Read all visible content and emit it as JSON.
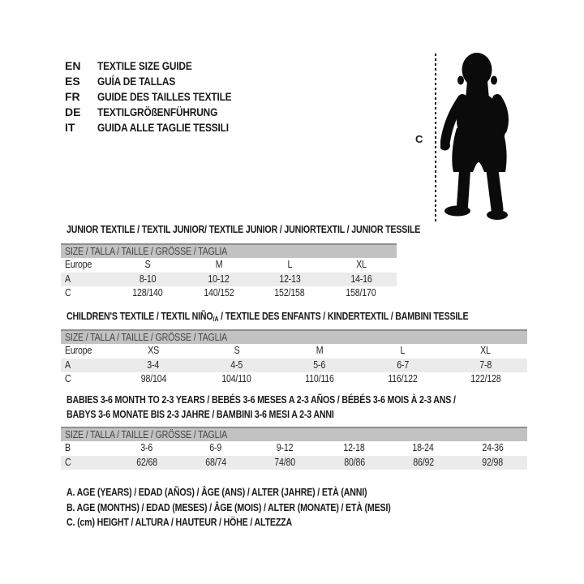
{
  "page": {
    "title": "Textile Size Guide"
  },
  "languages": [
    {
      "code": "EN",
      "label": "TEXTILE SIZE GUIDE"
    },
    {
      "code": "ES",
      "label": "GUÍA DE TALLAS"
    },
    {
      "code": "FR",
      "label": "GUIDE DES TAILLES TEXTILE"
    },
    {
      "code": "DE",
      "label": "TEXTILGRÖßENFÜHRUNG"
    },
    {
      "code": "IT",
      "label": "GUIDA ALLE TAGLIE TESSILI"
    }
  ],
  "figure": {
    "measure_label": "C"
  },
  "tables": {
    "junior": {
      "heading": "JUNIOR TEXTILE / TEXTIL JUNIOR/ TEXTILE JUNIOR / JUNIORTEXTIL / JUNIOR TESSILE",
      "size_header": "SIZE / TALLA / TAILLE / GRÖSSE / TAGLIA",
      "rows": [
        [
          "Europe",
          "S",
          "M",
          "L",
          "XL"
        ],
        [
          "A",
          "8-10",
          "10-12",
          "12-13",
          "14-16"
        ],
        [
          "C",
          "128/140",
          "140/152",
          "152/158",
          "158/170"
        ]
      ]
    },
    "children": {
      "heading_prefix": "CHILDREN'S TEXTILE / TEXTIL NIÑO",
      "heading_sub": "/A",
      "heading_suffix": " / TEXTILE DES ENFANTS / KINDERTEXTIL / BAMBINI TESSILE",
      "size_header": "SIZE / TALLA / TAILLE / GRÖSSE / TAGLIA",
      "rows": [
        [
          "Europe",
          "XS",
          "S",
          "M",
          "L",
          "XL"
        ],
        [
          "A",
          "3-4",
          "4-5",
          "5-6",
          "6-7",
          "7-8"
        ],
        [
          "C",
          "98/104",
          "104/110",
          "110/116",
          "116/122",
          "122/128"
        ]
      ]
    },
    "babies": {
      "heading_line1": "BABIES 3-6 MONTH TO 2-3 YEARS / BEBÉS 3-6 MESES A 2-3 AÑOS / BÉBÉS 3-6 MOIS À 2-3 ANS /",
      "heading_line2": "BABYS 3-6 MONATE BIS 2-3 JAHRE / BAMBINI 3-6 MESI A 2-3 ANNI",
      "size_header": "SIZE / TALLA / TAILLE / GRÖSSE / TAGLIA",
      "rows": [
        [
          "B",
          "3-6",
          "6-9",
          "9-12",
          "12-18",
          "18-24",
          "24-36"
        ],
        [
          "C",
          "62/68",
          "68/74",
          "74/80",
          "80/86",
          "86/92",
          "92/98"
        ]
      ]
    }
  },
  "notes": [
    "A. AGE (YEARS) / EDAD (AÑOS) / ÂGE (ANS) / ALTER (JAHRE) / ETÀ (ANNI)",
    "B. AGE (MONTHS) / EDAD (MESES) / ÂGE (MOIS) / ALTER (MONATE) / ETÀ (MESI)",
    "C. (cm) HEIGHT / ALTURA / HAUTEUR / HÖHE / ALTEZZA"
  ],
  "colors": {
    "table_header_bg": "#c2c2c2",
    "table_header_border": "#8f8f8f",
    "row_alt_bg": "#ebebeb",
    "text": "#1a1a1a",
    "silhouette": "#0b0b0b"
  }
}
